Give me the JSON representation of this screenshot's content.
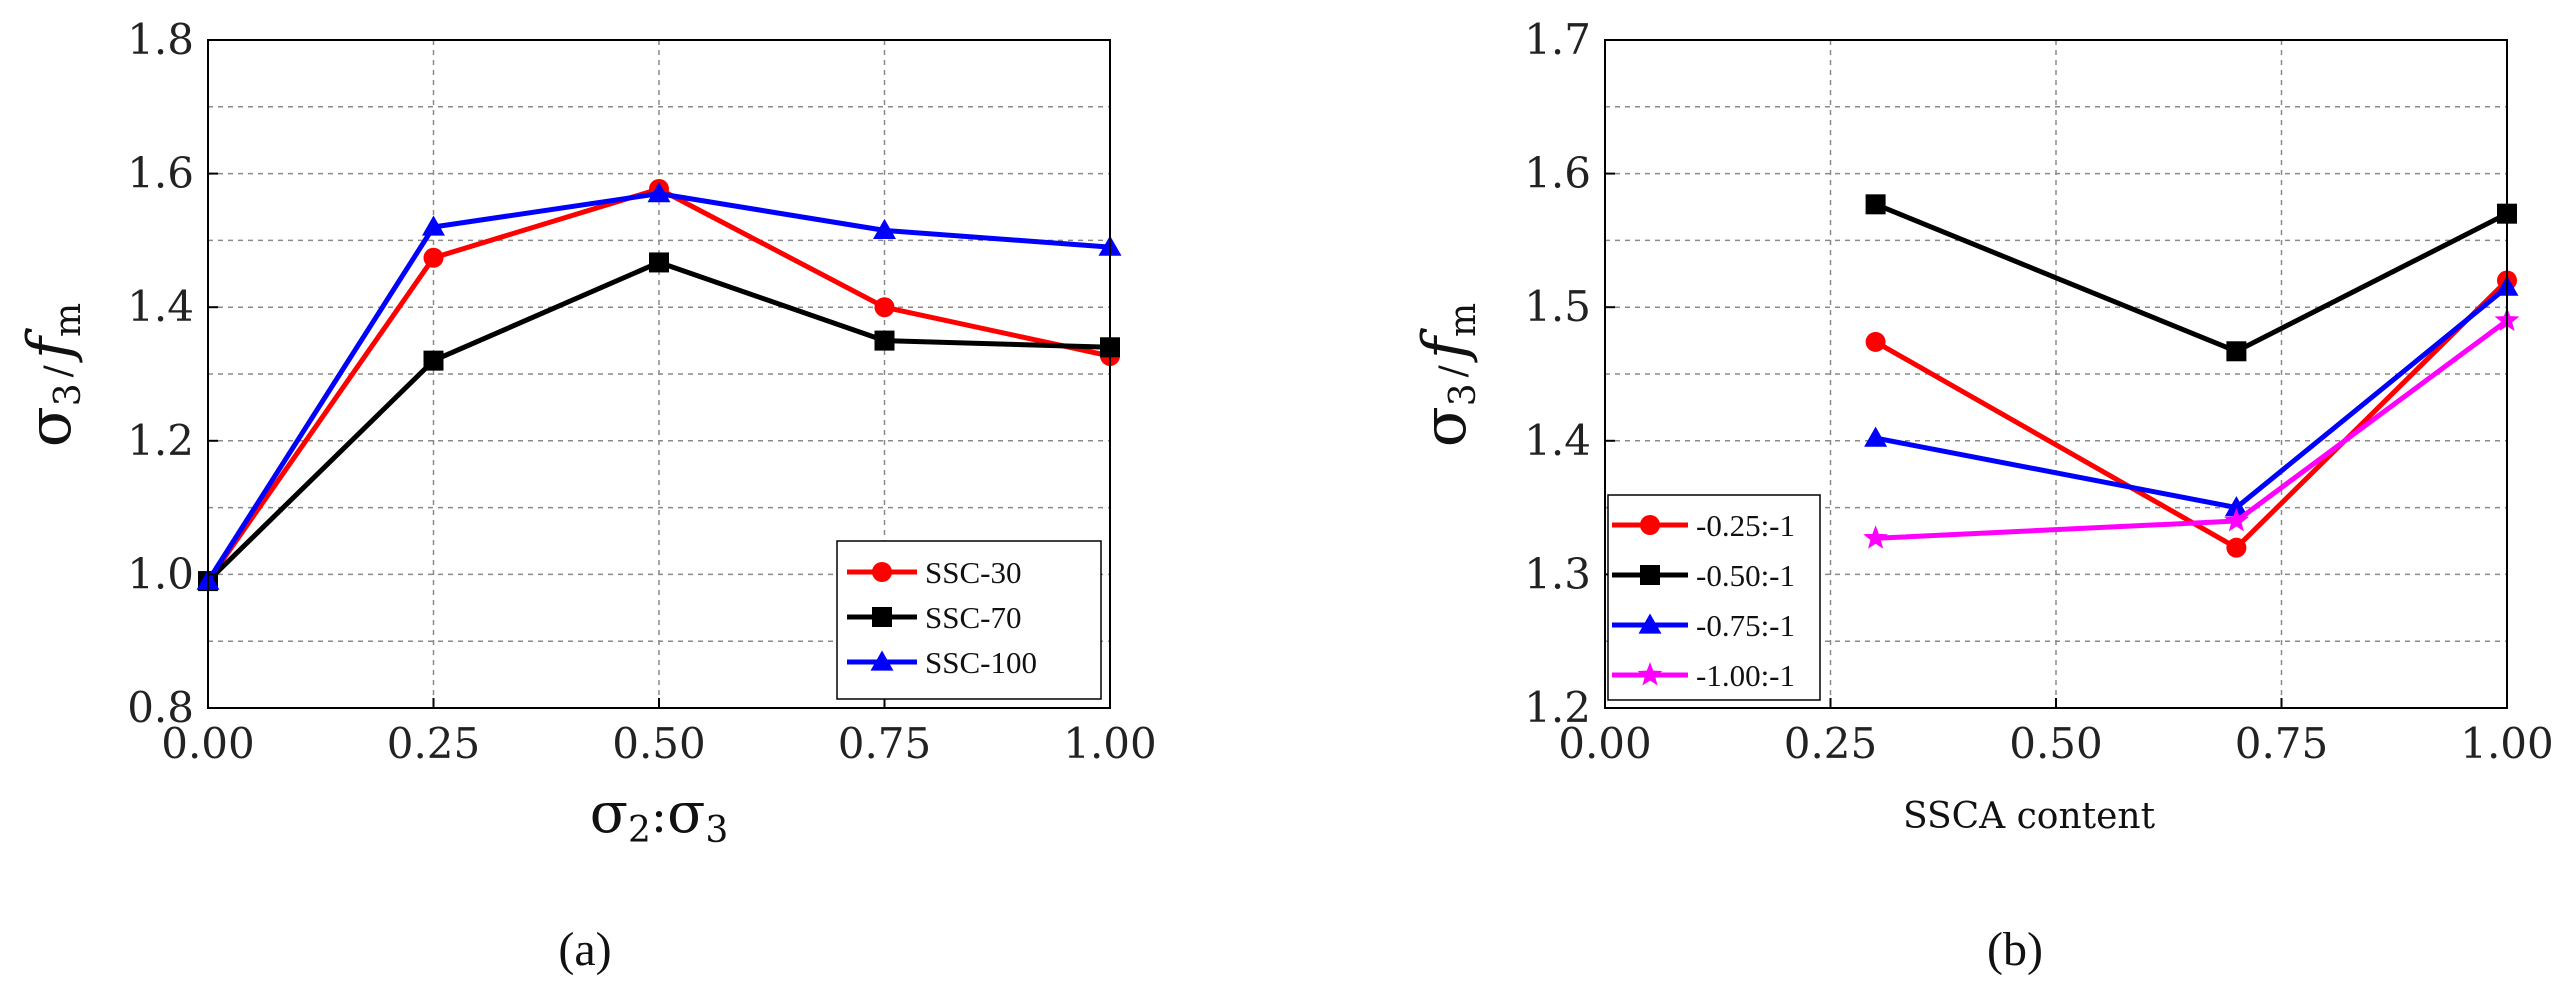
{
  "chart_data": [
    {
      "type": "line",
      "panel_label": "(a)",
      "ylabel": "σ₃ / f_m",
      "ylabel_parts": {
        "main": "σ",
        "sub1": "3",
        "sep": "/",
        "var": "f",
        "sub2": "m"
      },
      "xlabel": "σ₂:σ₃",
      "xlabel_parts": {
        "a": "σ",
        "a_sub": "2",
        "sep": ":",
        "b": "σ",
        "b_sub": "3"
      },
      "xlim": [
        0,
        1
      ],
      "ylim": [
        0.8,
        1.8
      ],
      "xticks": [
        0,
        0.25,
        0.5,
        0.75,
        1
      ],
      "xtick_labels": [
        "0.00",
        "0.25",
        "0.50",
        "0.75",
        "1.00"
      ],
      "yticks": [
        0.8,
        1.0,
        1.2,
        1.4,
        1.6,
        1.8
      ],
      "ytick_labels": [
        "0.8",
        "1.0",
        "1.2",
        "1.4",
        "1.6",
        "1.8"
      ],
      "grid": true,
      "legend_position": "bottom-right",
      "x": [
        0,
        0.25,
        0.5,
        0.75,
        1
      ],
      "series": [
        {
          "name": "SSC-30",
          "color": "#ff0000",
          "marker": "circle",
          "x": [
            0,
            0.25,
            0.5,
            0.75,
            1
          ],
          "values": [
            0.99,
            1.474,
            1.577,
            1.4,
            1.327
          ]
        },
        {
          "name": "SSC-70",
          "color": "#000000",
          "marker": "square",
          "x": [
            0,
            0.25,
            0.5,
            0.75,
            1
          ],
          "values": [
            0.99,
            1.32,
            1.467,
            1.35,
            1.34
          ]
        },
        {
          "name": "SSC-100",
          "color": "#0000ff",
          "marker": "triangle",
          "x": [
            0,
            0.25,
            0.5,
            0.75,
            1
          ],
          "values": [
            0.99,
            1.52,
            1.57,
            1.515,
            1.49
          ]
        }
      ]
    },
    {
      "type": "line",
      "panel_label": "(b)",
      "ylabel": "σ₃ / f_m",
      "ylabel_parts": {
        "main": "σ",
        "sub1": "3",
        "sep": "/",
        "var": "f",
        "sub2": "m"
      },
      "xlabel": "SSCA content",
      "xlim": [
        0,
        1
      ],
      "ylim": [
        1.2,
        1.7
      ],
      "xticks": [
        0,
        0.25,
        0.5,
        0.75,
        1
      ],
      "xtick_labels": [
        "0.00",
        "0.25",
        "0.50",
        "0.75",
        "1.00"
      ],
      "yticks": [
        1.2,
        1.3,
        1.4,
        1.5,
        1.6,
        1.7
      ],
      "ytick_labels": [
        "1.2",
        "1.3",
        "1.4",
        "1.5",
        "1.6",
        "1.7"
      ],
      "grid": true,
      "legend_position": "bottom-left",
      "x": [
        0.3,
        0.7,
        1.0
      ],
      "series": [
        {
          "name": "-0.25:-1",
          "color": "#ff0000",
          "marker": "circle",
          "x": [
            0.3,
            0.7,
            1.0
          ],
          "values": [
            1.474,
            1.32,
            1.52
          ]
        },
        {
          "name": "-0.50:-1",
          "color": "#000000",
          "marker": "square",
          "x": [
            0.3,
            0.7,
            1.0
          ],
          "values": [
            1.577,
            1.467,
            1.57
          ]
        },
        {
          "name": "-0.75:-1",
          "color": "#0000ff",
          "marker": "triangle",
          "x": [
            0.3,
            0.7,
            1.0
          ],
          "values": [
            1.402,
            1.35,
            1.515
          ]
        },
        {
          "name": "-1.00:-1",
          "color": "#ff00ff",
          "marker": "star",
          "x": [
            0.3,
            0.7,
            1.0
          ],
          "values": [
            1.327,
            1.34,
            1.49
          ]
        }
      ]
    }
  ]
}
